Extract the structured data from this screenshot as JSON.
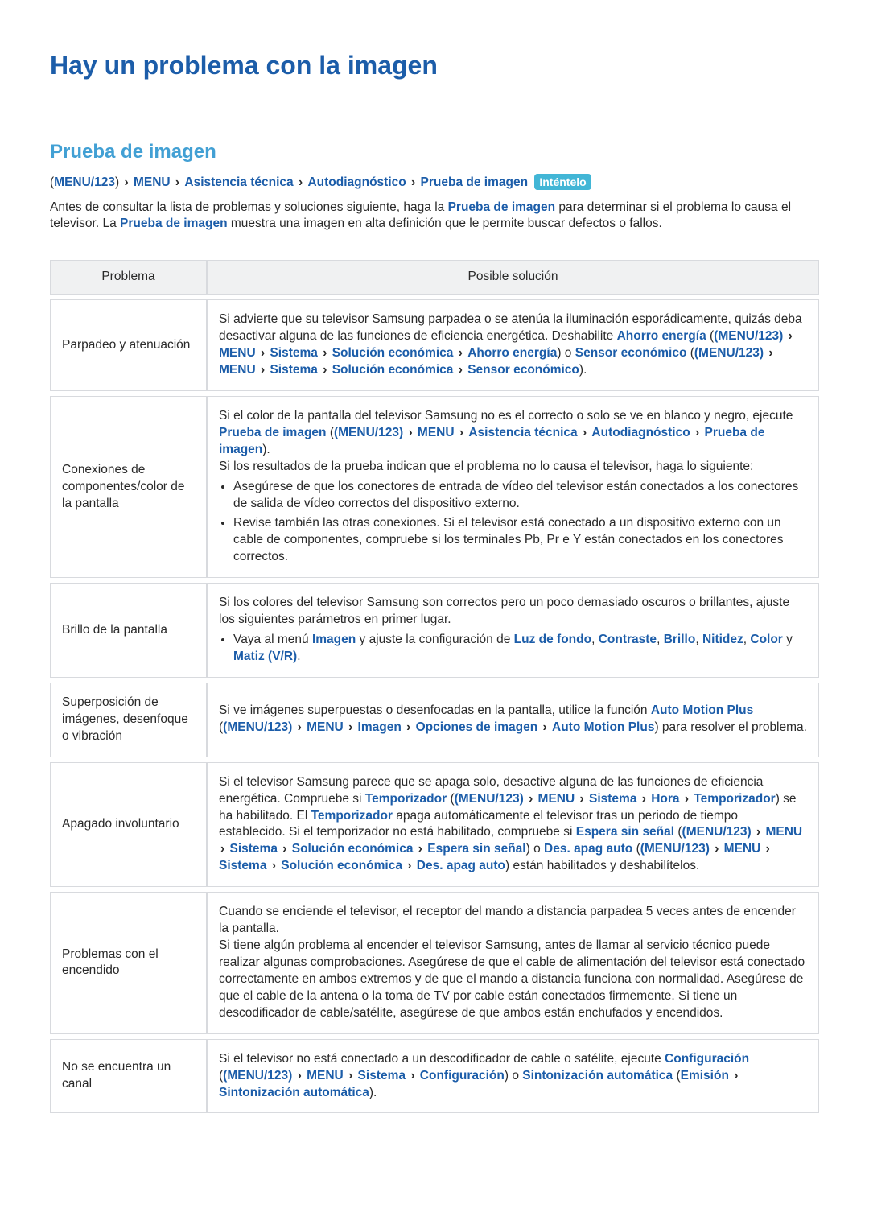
{
  "title": "Hay un problema con la imagen",
  "section_title": "Prueba de imagen",
  "path": {
    "prefix": "(",
    "items": [
      "MENU/123",
      "MENU",
      "Asistencia técnica",
      "Autodiagnóstico",
      "Prueba de imagen"
    ],
    "suffix_paren": ")",
    "try_label": "Inténtelo"
  },
  "intro": {
    "pre": "Antes de consultar la lista de problemas y soluciones siguiente, haga la ",
    "link1": "Prueba de imagen",
    "mid": " para determinar si el problema lo causa el televisor. La ",
    "link2": "Prueba de imagen",
    "post": " muestra una imagen en alta definición que le permite buscar defectos o fallos."
  },
  "table": {
    "col1": "Problema",
    "col2": "Posible solución",
    "rows": {
      "parpadeo": {
        "problem": "Parpadeo y atenuación",
        "s1": "Si advierte que su televisor Samsung parpadea o se atenúa la iluminación esporádicamente, quizás deba desactivar alguna de las funciones de eficiencia energética. Deshabilite ",
        "l1": "Ahorro energía",
        "s2": " (",
        "p1a": "(MENU/123)",
        "p1b": "MENU",
        "p1c": "Sistema",
        "p1d": "Solución económica",
        "p1e": "Ahorro energía",
        "s3": ") o ",
        "l2": "Sensor económico",
        "s4": " (",
        "p2a": "(MENU/123)",
        "p2b": "MENU",
        "p2c": "Sistema",
        "p2d": "Solución económica",
        "p2e": "Sensor económico",
        "s5": ")."
      },
      "conexiones": {
        "problem": "Conexiones de componentes/color de la pantalla",
        "s1": "Si el color de la pantalla del televisor Samsung no es el correcto o solo se ve en blanco y negro, ejecute ",
        "l1": "Prueba de imagen",
        "s2": " (",
        "pa": "(MENU/123)",
        "pb": "MENU",
        "pc": "Asistencia técnica",
        "pd": "Autodiagnóstico",
        "pe": "Prueba de imagen",
        "s3": ").",
        "s4": "Si los resultados de la prueba indican que el problema no lo causa el televisor, haga lo siguiente:",
        "b1": "Asegúrese de que los conectores de entrada de vídeo del televisor están conectados a los conectores de salida de vídeo correctos del dispositivo externo.",
        "b2": "Revise también las otras conexiones. Si el televisor está conectado a un dispositivo externo con un cable de componentes, compruebe si los terminales Pb, Pr e Y están conectados en los conectores correctos."
      },
      "brillo": {
        "problem": "Brillo de la pantalla",
        "s1": "Si los colores del televisor Samsung son correctos pero un poco demasiado oscuros o brillantes, ajuste los siguientes parámetros en primer lugar.",
        "b1a": "Vaya al menú ",
        "b1_l1": "Imagen",
        "b1b": " y ajuste la configuración de ",
        "b1_l2": "Luz de fondo",
        "b1c": ", ",
        "b1_l3": "Contraste",
        "b1d": ", ",
        "b1_l4": "Brillo",
        "b1e": ", ",
        "b1_l5": "Nitidez",
        "b1f": ", ",
        "b1_l6": "Color",
        "b1g": " y ",
        "b1_l7": "Matiz (V/R)",
        "b1h": "."
      },
      "superpos": {
        "problem": "Superposición de imágenes, desenfoque o vibración",
        "s1": "Si ve imágenes superpuestas o desenfocadas en la pantalla, utilice la función ",
        "l1": "Auto Motion Plus",
        "s2": " (",
        "pa": "(MENU/123)",
        "pb": "MENU",
        "pc": "Imagen",
        "pd": "Opciones de imagen",
        "pe": "Auto Motion Plus",
        "s3": ") para resolver el problema."
      },
      "apagado": {
        "problem": "Apagado involuntario",
        "s1": "Si el televisor Samsung parece que se apaga solo, desactive alguna de las funciones de eficiencia energética. Compruebe si ",
        "l1": "Temporizador",
        "s2": " (",
        "p1a": "(MENU/123)",
        "p1b": "MENU",
        "p1c": "Sistema",
        "p1d": "Hora",
        "p1e": "Temporizador",
        "s3": ") se ha habilitado. El ",
        "l2": "Temporizador",
        "s4": " apaga automáticamente el televisor tras un periodo de tiempo establecido. Si el temporizador no está habilitado, compruebe si ",
        "l3": "Espera sin señal",
        "s5": " (",
        "p2a": "(MENU/123)",
        "p2b": "MENU",
        "p2c": "Sistema",
        "p2d": "Solución económica",
        "p2e": "Espera sin señal",
        "s6": ") o ",
        "l4": "Des. apag auto",
        "s7": " (",
        "p3a": "(MENU/123)",
        "p3b": "MENU",
        "p3c": "Sistema",
        "p3d": "Solución económica",
        "p3e": "Des. apag auto",
        "s8": ") están habilitados y deshabilítelos."
      },
      "encendido": {
        "problem": "Problemas con el encendido",
        "s1": "Cuando se enciende el televisor, el receptor del mando a distancia parpadea 5 veces antes de encender la pantalla.",
        "s2": "Si tiene algún problema al encender el televisor Samsung, antes de llamar al servicio técnico puede realizar algunas comprobaciones. Asegúrese de que el cable de alimentación del televisor está conectado correctamente en ambos extremos y de que el mando a distancia funciona con normalidad. Asegúrese de que el cable de la antena o la toma de TV por cable están conectados firmemente. Si tiene un descodificador de cable/satélite, asegúrese de que ambos están enchufados y encendidos."
      },
      "canal": {
        "problem": "No se encuentra un canal",
        "s1": "Si el televisor no está conectado a un descodificador de cable o satélite, ejecute ",
        "l1": "Configuración",
        "s2": " (",
        "p1a": "(MENU/123)",
        "p1b": "MENU",
        "p1c": "Sistema",
        "p1d": "Configuración",
        "s3": ") o ",
        "l2": "Sintonización automática",
        "s4": " (",
        "p2a": "Emisión",
        "p2b": "Sintonización automática",
        "s5": ")."
      }
    }
  }
}
